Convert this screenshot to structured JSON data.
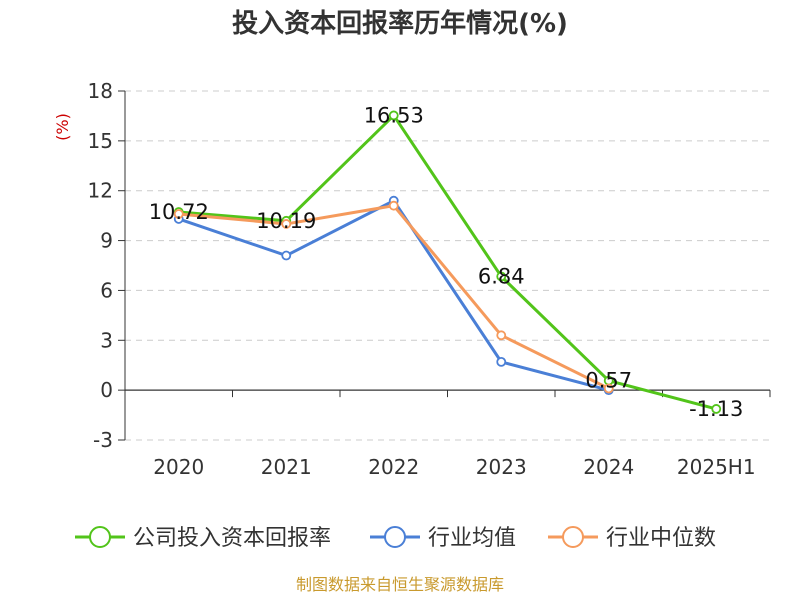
{
  "chart_data": {
    "type": "line",
    "title": "投入资本回报率历年情况(%)",
    "ylabel": "(%)",
    "categories": [
      "2020",
      "2021",
      "2022",
      "2023",
      "2024",
      "2025H1"
    ],
    "ylim": [
      -3,
      18
    ],
    "yticks": [
      -3,
      0,
      3,
      6,
      9,
      12,
      15,
      18
    ],
    "grid": true,
    "legend_position": "bottom",
    "series": [
      {
        "name": "公司投入资本回报率",
        "color": "#52c41a",
        "values": [
          10.72,
          10.19,
          16.53,
          6.84,
          0.57,
          -1.13
        ],
        "data_labels": [
          "10.72",
          "10.19",
          "16.53",
          "6.84",
          "0.57",
          "-1.13"
        ]
      },
      {
        "name": "行业均值",
        "color": "#4a7fd6",
        "values": [
          10.3,
          8.1,
          11.4,
          1.7,
          0.0,
          null
        ],
        "data_labels": null
      },
      {
        "name": "行业中位数",
        "color": "#f59a5c",
        "values": [
          10.6,
          10.0,
          11.1,
          3.3,
          0.1,
          null
        ],
        "data_labels": null
      }
    ],
    "source": "制图数据来自恒生聚源数据库"
  }
}
